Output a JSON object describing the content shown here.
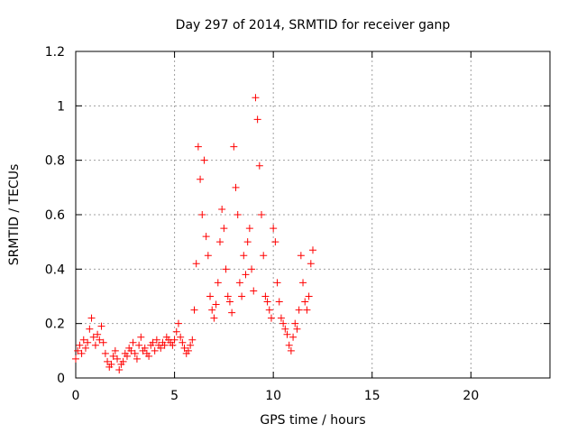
{
  "chart_data": {
    "type": "scatter",
    "title": "Day 297 of 2014, SRMTID for receiver ganp",
    "xlabel": "GPS time / hours",
    "ylabel": "SRMTID / TECUs",
    "xlim": [
      0,
      24
    ],
    "ylim": [
      0,
      1.2
    ],
    "xticks": [
      0,
      5,
      10,
      15,
      20
    ],
    "xtick_labels": [
      "0",
      "5",
      "10",
      "15",
      "20"
    ],
    "yticks": [
      0,
      0.2,
      0.4,
      0.6,
      0.8,
      1.0,
      1.2
    ],
    "ytick_labels": [
      "0",
      "0.2",
      "0.4",
      "0.6",
      "0.8",
      "1",
      "1.2"
    ],
    "grid": true,
    "marker": "+",
    "color": "#ff0000",
    "series": [
      {
        "name": "SRMTID",
        "x": [
          0.0,
          0.1,
          0.2,
          0.3,
          0.4,
          0.5,
          0.6,
          0.7,
          0.8,
          0.9,
          1.0,
          1.1,
          1.2,
          1.3,
          1.4,
          1.5,
          1.6,
          1.7,
          1.8,
          1.9,
          2.0,
          2.1,
          2.2,
          2.3,
          2.4,
          2.5,
          2.6,
          2.7,
          2.8,
          2.9,
          3.0,
          3.1,
          3.2,
          3.3,
          3.4,
          3.5,
          3.6,
          3.7,
          3.8,
          3.9,
          4.0,
          4.1,
          4.2,
          4.3,
          4.4,
          4.5,
          4.6,
          4.7,
          4.8,
          4.9,
          5.0,
          5.1,
          5.2,
          5.3,
          5.4,
          5.5,
          5.6,
          5.7,
          5.8,
          5.9,
          6.0,
          6.1,
          6.2,
          6.3,
          6.4,
          6.5,
          6.6,
          6.7,
          6.8,
          6.9,
          7.0,
          7.1,
          7.2,
          7.3,
          7.4,
          7.5,
          7.6,
          7.7,
          7.8,
          7.9,
          8.0,
          8.1,
          8.2,
          8.3,
          8.4,
          8.5,
          8.6,
          8.7,
          8.8,
          8.9,
          9.0,
          9.1,
          9.2,
          9.3,
          9.4,
          9.5,
          9.6,
          9.7,
          9.8,
          9.9,
          10.0,
          10.1,
          10.2,
          10.3,
          10.4,
          10.5,
          10.6,
          10.7,
          10.8,
          10.9,
          11.0,
          11.1,
          11.2,
          11.3,
          11.4,
          11.5,
          11.6,
          11.7,
          11.8,
          11.9,
          12.0
        ],
        "y": [
          0.07,
          0.1,
          0.12,
          0.09,
          0.14,
          0.11,
          0.13,
          0.18,
          0.22,
          0.15,
          0.12,
          0.16,
          0.14,
          0.19,
          0.13,
          0.09,
          0.06,
          0.04,
          0.05,
          0.08,
          0.1,
          0.07,
          0.03,
          0.05,
          0.06,
          0.09,
          0.08,
          0.11,
          0.1,
          0.13,
          0.09,
          0.07,
          0.12,
          0.15,
          0.1,
          0.11,
          0.09,
          0.08,
          0.12,
          0.13,
          0.1,
          0.14,
          0.12,
          0.11,
          0.13,
          0.12,
          0.15,
          0.14,
          0.13,
          0.12,
          0.14,
          0.17,
          0.2,
          0.15,
          0.13,
          0.11,
          0.09,
          0.1,
          0.12,
          0.14,
          0.25,
          0.42,
          0.85,
          0.73,
          0.6,
          0.8,
          0.52,
          0.45,
          0.3,
          0.25,
          0.22,
          0.27,
          0.35,
          0.5,
          0.62,
          0.55,
          0.4,
          0.3,
          0.28,
          0.24,
          0.85,
          0.7,
          0.6,
          0.35,
          0.3,
          0.45,
          0.38,
          0.5,
          0.55,
          0.4,
          0.32,
          1.03,
          0.95,
          0.78,
          0.6,
          0.45,
          0.3,
          0.28,
          0.25,
          0.22,
          0.55,
          0.5,
          0.35,
          0.28,
          0.22,
          0.2,
          0.18,
          0.16,
          0.12,
          0.1,
          0.15,
          0.2,
          0.18,
          0.25,
          0.45,
          0.35,
          0.28,
          0.25,
          0.3,
          0.42,
          0.47
        ]
      }
    ]
  }
}
